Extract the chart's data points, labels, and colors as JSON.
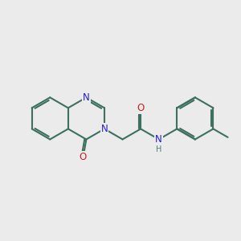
{
  "bg_color": "#ebebeb",
  "bond_color": "#3d7060",
  "bond_width": 1.5,
  "atom_colors": {
    "N": "#2020cc",
    "O": "#cc2020",
    "C": "#3d7060",
    "NH": "#4a8070"
  },
  "font_size": 8.5,
  "fig_size": [
    3.0,
    3.0
  ],
  "dpi": 100,
  "xlim": [
    -3.2,
    8.2
  ],
  "ylim": [
    -3.0,
    2.8
  ]
}
